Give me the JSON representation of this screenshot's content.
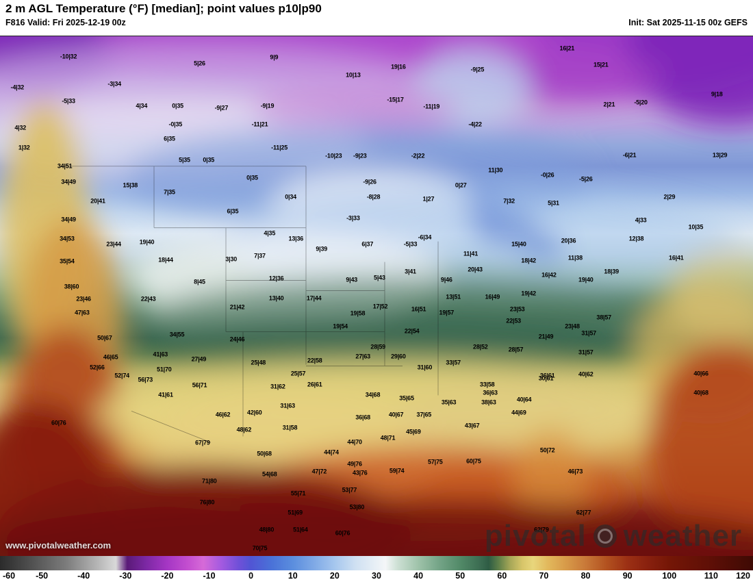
{
  "header": {
    "title": "2 m AGL Temperature (°F) [median]; point values p10|p90",
    "valid": "F816 Valid: Fri 2025-12-19 00z",
    "init": "Init: Sat 2025-11-15 00z GEFS"
  },
  "watermark": {
    "site": "www.pivotalweather.com",
    "brand_left": "pivotal",
    "brand_right": "weather"
  },
  "colorbar": {
    "min": -60,
    "max": 120,
    "ticks": [
      "-60",
      "-50",
      "-40",
      "-30",
      "-20",
      "-10",
      "0",
      "10",
      "20",
      "30",
      "40",
      "50",
      "60",
      "70",
      "80",
      "90",
      "100",
      "110",
      "120"
    ]
  },
  "points": [
    {
      "x": 9.1,
      "y": 4.0,
      "v": "-10|32"
    },
    {
      "x": 26.5,
      "y": 5.3,
      "v": "5|26"
    },
    {
      "x": 36.4,
      "y": 4.1,
      "v": "9|9"
    },
    {
      "x": 75.3,
      "y": 2.4,
      "v": "16|21"
    },
    {
      "x": 46.9,
      "y": 7.5,
      "v": "10|13"
    },
    {
      "x": 52.9,
      "y": 5.9,
      "v": "19|16"
    },
    {
      "x": 63.4,
      "y": 6.5,
      "v": "-9|25"
    },
    {
      "x": 79.8,
      "y": 5.5,
      "v": "15|21"
    },
    {
      "x": 95.2,
      "y": 11.2,
      "v": "9|18"
    },
    {
      "x": 2.3,
      "y": 9.9,
      "v": "-4|32"
    },
    {
      "x": 15.2,
      "y": 9.2,
      "v": "-3|34"
    },
    {
      "x": 9.1,
      "y": 12.5,
      "v": "-5|33"
    },
    {
      "x": 18.8,
      "y": 13.5,
      "v": "4|34"
    },
    {
      "x": 23.6,
      "y": 13.5,
      "v": "0|35"
    },
    {
      "x": 29.4,
      "y": 13.9,
      "v": "-9|27"
    },
    {
      "x": 35.5,
      "y": 13.5,
      "v": "-9|19"
    },
    {
      "x": 52.5,
      "y": 12.2,
      "v": "-15|17"
    },
    {
      "x": 57.3,
      "y": 13.6,
      "v": "-11|19"
    },
    {
      "x": 80.9,
      "y": 13.2,
      "v": "2|21"
    },
    {
      "x": 85.1,
      "y": 12.8,
      "v": "-5|20"
    },
    {
      "x": 2.7,
      "y": 17.6,
      "v": "4|32"
    },
    {
      "x": 23.3,
      "y": 17.0,
      "v": "-0|35"
    },
    {
      "x": 34.5,
      "y": 17.0,
      "v": "-11|21"
    },
    {
      "x": 63.1,
      "y": 17.0,
      "v": "-4|22"
    },
    {
      "x": 3.2,
      "y": 21.5,
      "v": "1|32"
    },
    {
      "x": 22.5,
      "y": 19.8,
      "v": "6|35"
    },
    {
      "x": 37.1,
      "y": 21.5,
      "v": "-11|25"
    },
    {
      "x": 55.5,
      "y": 23.1,
      "v": "-2|22"
    },
    {
      "x": 83.6,
      "y": 22.9,
      "v": "-6|21"
    },
    {
      "x": 95.6,
      "y": 22.9,
      "v": "13|29"
    },
    {
      "x": 8.6,
      "y": 25.1,
      "v": "34|51"
    },
    {
      "x": 24.5,
      "y": 23.8,
      "v": "5|35"
    },
    {
      "x": 27.7,
      "y": 23.8,
      "v": "0|35"
    },
    {
      "x": 44.3,
      "y": 23.1,
      "v": "-10|23"
    },
    {
      "x": 47.8,
      "y": 23.1,
      "v": "-9|23"
    },
    {
      "x": 65.8,
      "y": 25.8,
      "v": "11|30"
    },
    {
      "x": 72.7,
      "y": 26.8,
      "v": "-0|26"
    },
    {
      "x": 77.8,
      "y": 27.5,
      "v": "-5|26"
    },
    {
      "x": 9.1,
      "y": 28.1,
      "v": "34|49"
    },
    {
      "x": 17.3,
      "y": 28.7,
      "v": "15|38"
    },
    {
      "x": 33.5,
      "y": 27.3,
      "v": "0|35"
    },
    {
      "x": 49.1,
      "y": 28.1,
      "v": "-9|26"
    },
    {
      "x": 61.2,
      "y": 28.7,
      "v": "0|27"
    },
    {
      "x": 88.9,
      "y": 31.0,
      "v": "2|29"
    },
    {
      "x": 13.0,
      "y": 31.7,
      "v": "20|41"
    },
    {
      "x": 22.5,
      "y": 30.1,
      "v": "7|35"
    },
    {
      "x": 38.6,
      "y": 31.0,
      "v": "0|34"
    },
    {
      "x": 49.6,
      "y": 31.0,
      "v": "-8|28"
    },
    {
      "x": 56.9,
      "y": 31.4,
      "v": "1|27"
    },
    {
      "x": 67.6,
      "y": 31.7,
      "v": "7|32"
    },
    {
      "x": 73.5,
      "y": 32.1,
      "v": "5|31"
    },
    {
      "x": 9.1,
      "y": 35.3,
      "v": "34|49"
    },
    {
      "x": 30.9,
      "y": 33.7,
      "v": "6|35"
    },
    {
      "x": 46.9,
      "y": 35.0,
      "v": "-3|33"
    },
    {
      "x": 85.1,
      "y": 35.4,
      "v": "4|33"
    },
    {
      "x": 92.4,
      "y": 36.7,
      "v": "10|35"
    },
    {
      "x": 8.9,
      "y": 39.0,
      "v": "34|53"
    },
    {
      "x": 15.1,
      "y": 40.0,
      "v": "23|44"
    },
    {
      "x": 19.5,
      "y": 39.6,
      "v": "19|40"
    },
    {
      "x": 35.8,
      "y": 38.0,
      "v": "4|35"
    },
    {
      "x": 39.3,
      "y": 39.0,
      "v": "13|36"
    },
    {
      "x": 42.7,
      "y": 41.0,
      "v": "9|39"
    },
    {
      "x": 54.5,
      "y": 40.1,
      "v": "-5|33"
    },
    {
      "x": 56.4,
      "y": 38.8,
      "v": "-6|34"
    },
    {
      "x": 68.9,
      "y": 40.0,
      "v": "15|40"
    },
    {
      "x": 75.5,
      "y": 39.4,
      "v": "20|36"
    },
    {
      "x": 84.5,
      "y": 39.0,
      "v": "12|38"
    },
    {
      "x": 8.9,
      "y": 43.3,
      "v": "35|54"
    },
    {
      "x": 22.0,
      "y": 43.1,
      "v": "18|44"
    },
    {
      "x": 30.7,
      "y": 42.9,
      "v": "3|30"
    },
    {
      "x": 34.5,
      "y": 42.3,
      "v": "7|37"
    },
    {
      "x": 48.8,
      "y": 40.0,
      "v": "6|37"
    },
    {
      "x": 62.5,
      "y": 41.9,
      "v": "11|41"
    },
    {
      "x": 70.2,
      "y": 43.2,
      "v": "18|42"
    },
    {
      "x": 76.4,
      "y": 42.7,
      "v": "11|38"
    },
    {
      "x": 89.8,
      "y": 42.7,
      "v": "16|41"
    },
    {
      "x": 81.2,
      "y": 45.3,
      "v": "18|39"
    },
    {
      "x": 9.5,
      "y": 48.2,
      "v": "38|60"
    },
    {
      "x": 26.5,
      "y": 47.3,
      "v": "8|45"
    },
    {
      "x": 36.7,
      "y": 46.6,
      "v": "12|36"
    },
    {
      "x": 46.7,
      "y": 46.9,
      "v": "9|43"
    },
    {
      "x": 50.4,
      "y": 46.5,
      "v": "5|43"
    },
    {
      "x": 54.5,
      "y": 45.3,
      "v": "3|41"
    },
    {
      "x": 59.3,
      "y": 46.9,
      "v": "9|46"
    },
    {
      "x": 63.1,
      "y": 44.9,
      "v": "20|43"
    },
    {
      "x": 72.9,
      "y": 46.0,
      "v": "16|42"
    },
    {
      "x": 77.8,
      "y": 46.9,
      "v": "19|40"
    },
    {
      "x": 11.1,
      "y": 50.6,
      "v": "23|46"
    },
    {
      "x": 19.7,
      "y": 50.6,
      "v": "22|43"
    },
    {
      "x": 36.7,
      "y": 50.5,
      "v": "13|40"
    },
    {
      "x": 41.7,
      "y": 50.5,
      "v": "17|44"
    },
    {
      "x": 60.2,
      "y": 50.2,
      "v": "13|51"
    },
    {
      "x": 65.4,
      "y": 50.2,
      "v": "16|49"
    },
    {
      "x": 70.2,
      "y": 49.5,
      "v": "19|42"
    },
    {
      "x": 10.9,
      "y": 53.2,
      "v": "47|63"
    },
    {
      "x": 31.5,
      "y": 52.2,
      "v": "21|42"
    },
    {
      "x": 47.5,
      "y": 53.3,
      "v": "19|58"
    },
    {
      "x": 50.5,
      "y": 52.0,
      "v": "17|52"
    },
    {
      "x": 55.6,
      "y": 52.6,
      "v": "16|51"
    },
    {
      "x": 59.3,
      "y": 53.2,
      "v": "19|57"
    },
    {
      "x": 68.7,
      "y": 52.6,
      "v": "23|53"
    },
    {
      "x": 76.0,
      "y": 55.9,
      "v": "23|48"
    },
    {
      "x": 78.2,
      "y": 57.2,
      "v": "31|57"
    },
    {
      "x": 80.2,
      "y": 54.2,
      "v": "38|57"
    },
    {
      "x": 13.9,
      "y": 58.1,
      "v": "50|67"
    },
    {
      "x": 23.5,
      "y": 57.5,
      "v": "34|55"
    },
    {
      "x": 45.2,
      "y": 55.9,
      "v": "19|54"
    },
    {
      "x": 54.7,
      "y": 56.8,
      "v": "22|54"
    },
    {
      "x": 68.2,
      "y": 54.8,
      "v": "22|53"
    },
    {
      "x": 31.5,
      "y": 58.4,
      "v": "24|46"
    },
    {
      "x": 50.2,
      "y": 59.8,
      "v": "28|59"
    },
    {
      "x": 52.9,
      "y": 61.6,
      "v": "29|60"
    },
    {
      "x": 63.8,
      "y": 59.8,
      "v": "28|52"
    },
    {
      "x": 68.5,
      "y": 60.4,
      "v": "28|57"
    },
    {
      "x": 72.5,
      "y": 57.9,
      "v": "21|49"
    },
    {
      "x": 77.8,
      "y": 60.9,
      "v": "31|57"
    },
    {
      "x": 14.7,
      "y": 61.8,
      "v": "46|65"
    },
    {
      "x": 21.3,
      "y": 61.3,
      "v": "41|63"
    },
    {
      "x": 26.4,
      "y": 62.2,
      "v": "27|49"
    },
    {
      "x": 34.3,
      "y": 62.9,
      "v": "25|48"
    },
    {
      "x": 41.8,
      "y": 62.4,
      "v": "22|58"
    },
    {
      "x": 48.2,
      "y": 61.6,
      "v": "27|63"
    },
    {
      "x": 56.4,
      "y": 63.8,
      "v": "31|60"
    },
    {
      "x": 60.2,
      "y": 62.9,
      "v": "33|57"
    },
    {
      "x": 12.9,
      "y": 63.8,
      "v": "52|66"
    },
    {
      "x": 21.8,
      "y": 64.2,
      "v": "51|70"
    },
    {
      "x": 72.7,
      "y": 65.4,
      "v": "36|61"
    },
    {
      "x": 77.8,
      "y": 65.1,
      "v": "40|62"
    },
    {
      "x": 16.2,
      "y": 65.4,
      "v": "52|74"
    },
    {
      "x": 19.3,
      "y": 66.2,
      "v": "56|73"
    },
    {
      "x": 39.6,
      "y": 64.9,
      "v": "25|57"
    },
    {
      "x": 41.8,
      "y": 67.1,
      "v": "26|61"
    },
    {
      "x": 36.9,
      "y": 67.5,
      "v": "31|62"
    },
    {
      "x": 64.7,
      "y": 67.1,
      "v": "33|58"
    },
    {
      "x": 65.1,
      "y": 68.6,
      "v": "36|63"
    },
    {
      "x": 72.5,
      "y": 65.9,
      "v": "30|61"
    },
    {
      "x": 93.1,
      "y": 64.9,
      "v": "40|66"
    },
    {
      "x": 22.0,
      "y": 69.1,
      "v": "41|61"
    },
    {
      "x": 26.5,
      "y": 67.2,
      "v": "56|71"
    },
    {
      "x": 38.2,
      "y": 71.1,
      "v": "31|63"
    },
    {
      "x": 49.5,
      "y": 69.1,
      "v": "34|68"
    },
    {
      "x": 54.0,
      "y": 69.7,
      "v": "35|65"
    },
    {
      "x": 59.6,
      "y": 70.5,
      "v": "35|63"
    },
    {
      "x": 64.9,
      "y": 70.5,
      "v": "38|63"
    },
    {
      "x": 69.6,
      "y": 69.9,
      "v": "40|64"
    },
    {
      "x": 93.1,
      "y": 68.6,
      "v": "40|68"
    },
    {
      "x": 29.6,
      "y": 72.8,
      "v": "46|62"
    },
    {
      "x": 33.8,
      "y": 72.4,
      "v": "42|60"
    },
    {
      "x": 68.9,
      "y": 72.5,
      "v": "44|69"
    },
    {
      "x": 7.8,
      "y": 74.5,
      "v": "60|76"
    },
    {
      "x": 32.4,
      "y": 75.8,
      "v": "48|62"
    },
    {
      "x": 38.5,
      "y": 75.4,
      "v": "31|58"
    },
    {
      "x": 48.2,
      "y": 73.4,
      "v": "36|68"
    },
    {
      "x": 52.6,
      "y": 72.9,
      "v": "40|67"
    },
    {
      "x": 56.3,
      "y": 72.9,
      "v": "37|65"
    },
    {
      "x": 54.9,
      "y": 76.1,
      "v": "45|69"
    },
    {
      "x": 62.7,
      "y": 75.0,
      "v": "43|67"
    },
    {
      "x": 26.9,
      "y": 78.3,
      "v": "67|79"
    },
    {
      "x": 47.1,
      "y": 78.1,
      "v": "44|70"
    },
    {
      "x": 51.5,
      "y": 77.4,
      "v": "48|71"
    },
    {
      "x": 72.7,
      "y": 79.7,
      "v": "50|72"
    },
    {
      "x": 35.1,
      "y": 80.3,
      "v": "50|68"
    },
    {
      "x": 44.0,
      "y": 80.1,
      "v": "44|74"
    },
    {
      "x": 52.7,
      "y": 83.6,
      "v": "59|74"
    },
    {
      "x": 57.8,
      "y": 82.0,
      "v": "57|75"
    },
    {
      "x": 62.9,
      "y": 81.8,
      "v": "60|75"
    },
    {
      "x": 47.1,
      "y": 82.3,
      "v": "49|76"
    },
    {
      "x": 35.8,
      "y": 84.3,
      "v": "54|68"
    },
    {
      "x": 47.8,
      "y": 84.0,
      "v": "43|76"
    },
    {
      "x": 42.4,
      "y": 83.8,
      "v": "47|72"
    },
    {
      "x": 76.4,
      "y": 83.8,
      "v": "46|73"
    },
    {
      "x": 27.8,
      "y": 85.7,
      "v": "71|80"
    },
    {
      "x": 39.6,
      "y": 88.0,
      "v": "55|71"
    },
    {
      "x": 46.4,
      "y": 87.3,
      "v": "53|77"
    },
    {
      "x": 27.5,
      "y": 89.7,
      "v": "76|80"
    },
    {
      "x": 47.4,
      "y": 90.6,
      "v": "53|80"
    },
    {
      "x": 39.2,
      "y": 91.7,
      "v": "51|69"
    },
    {
      "x": 77.5,
      "y": 91.7,
      "v": "62|77"
    },
    {
      "x": 35.4,
      "y": 95.0,
      "v": "48|80"
    },
    {
      "x": 39.9,
      "y": 95.0,
      "v": "51|64"
    },
    {
      "x": 45.5,
      "y": 95.6,
      "v": "60|76"
    },
    {
      "x": 71.9,
      "y": 95.0,
      "v": "62|79"
    },
    {
      "x": 34.5,
      "y": 98.5,
      "v": "70|75"
    }
  ]
}
